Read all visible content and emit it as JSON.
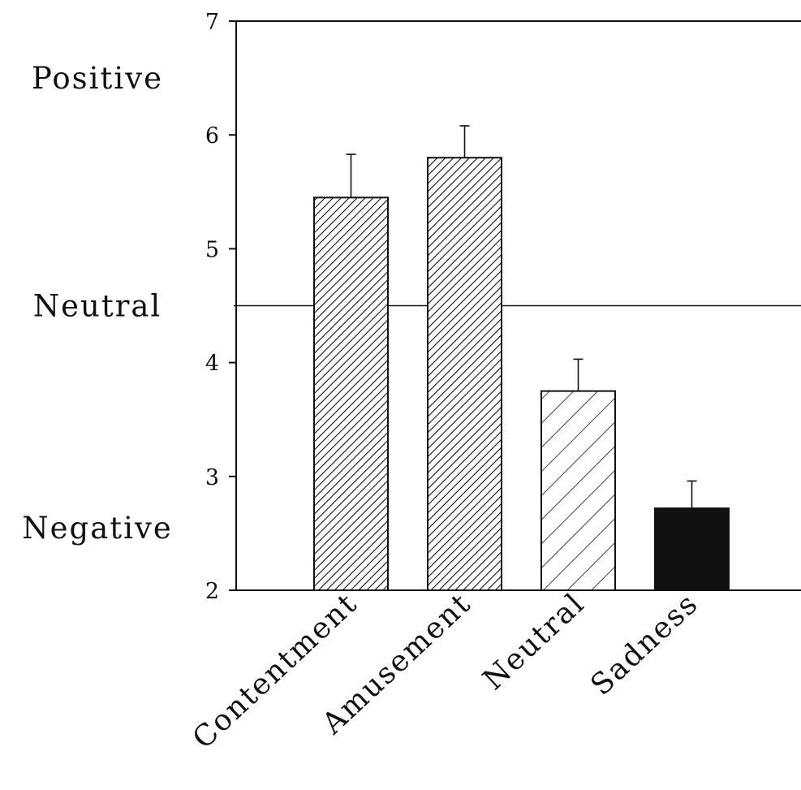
{
  "chart_data": {
    "type": "bar",
    "title": "",
    "xlabel": "",
    "ylabel": "",
    "ylim": [
      2,
      7
    ],
    "yticks": [
      "2",
      "3",
      "4",
      "5",
      "6",
      "7"
    ],
    "categories": [
      "Contentment",
      "Amusement",
      "Neutral",
      "Sadness"
    ],
    "values": [
      5.45,
      5.8,
      3.75,
      2.72
    ],
    "errors": [
      0.38,
      0.28,
      0.28,
      0.24
    ],
    "fills": [
      "dense-hatch",
      "dense-hatch",
      "sparse-hatch",
      "solid-black"
    ],
    "reference_line": {
      "value": 4.5
    },
    "side_labels": [
      {
        "text": "Positive",
        "value": 6.5
      },
      {
        "text": "Neutral",
        "value": 4.5
      },
      {
        "text": "Negative",
        "value": 2.55
      }
    ],
    "grid": false,
    "legend": "none",
    "colors": {
      "ink": "#111111",
      "background": "#ffffff"
    }
  }
}
